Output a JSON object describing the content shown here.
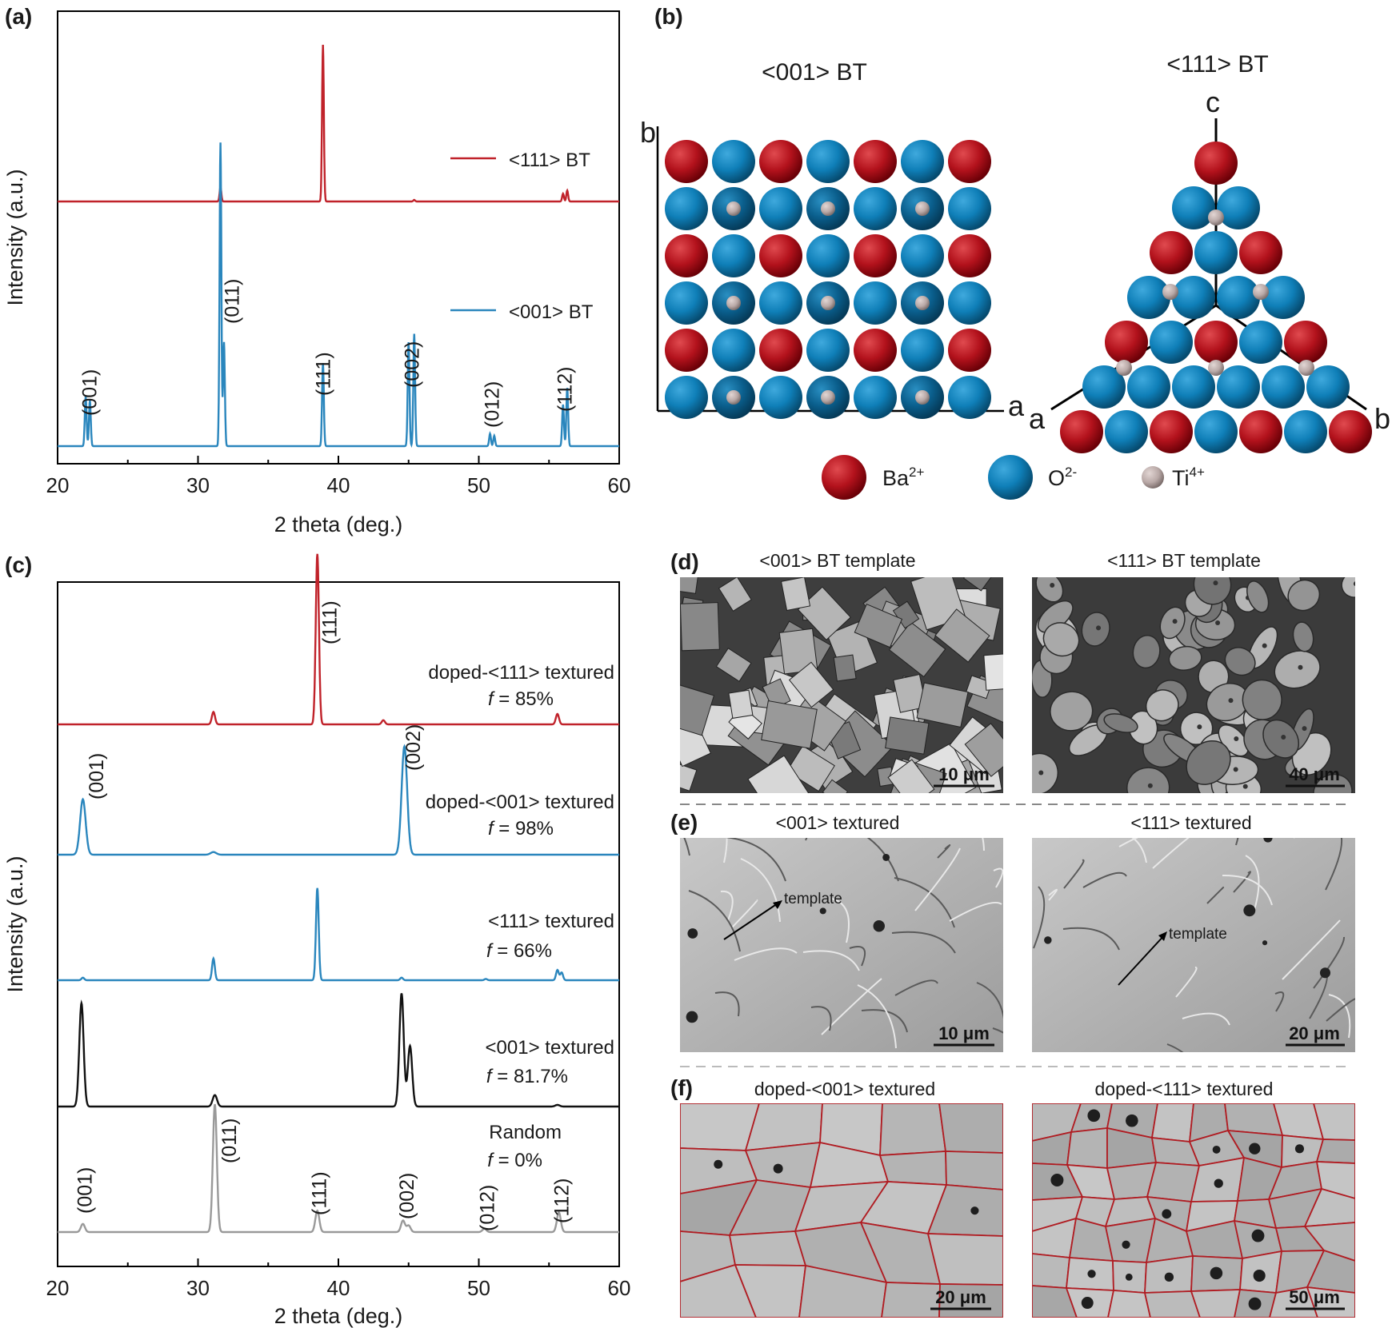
{
  "colors": {
    "red": "#c0222a",
    "blue": "#2a86bd",
    "black": "#111111",
    "gray": "#999999",
    "ba": "#b3121c",
    "o": "#0f7fb8",
    "ti": "#b9a9a7"
  },
  "panel_a": {
    "label": "(a)",
    "legend": [
      "<111> BT",
      "<001> BT"
    ],
    "peaks": [
      "(001)",
      "(011)",
      "(111)",
      "(002)",
      "(012)",
      "(112)"
    ]
  },
  "panel_b": {
    "label": "(b)",
    "title_001": "<001> BT",
    "title_111": "<111> BT",
    "axis_001_b": "b",
    "axis_001_a": "a",
    "axis_111_c": "c",
    "axis_111_a": "a",
    "axis_111_b": "b",
    "legend_ba": "Ba",
    "legend_ba_sup": "2+",
    "legend_o": "O",
    "legend_o_sup": "2-",
    "legend_ti": "Ti",
    "legend_ti_sup": "4+"
  },
  "panel_c": {
    "label": "(c)",
    "series": [
      {
        "name": "doped-<111> textured",
        "f_label": "f",
        "f_value": " = 85%"
      },
      {
        "name": "doped-<001> textured",
        "f_label": "f",
        "f_value": " = 98%"
      },
      {
        "name": "<111> textured",
        "f_label": "f",
        "f_value": " = 66%"
      },
      {
        "name": "<001> textured",
        "f_label": "f",
        "f_value": " = 81.7%"
      },
      {
        "name": "Random",
        "f_label": "f",
        "f_value": " = 0%"
      }
    ],
    "peaks_top": [
      "(111)",
      "(001)",
      "(002)"
    ],
    "peaks_random": [
      "(001)",
      "(011)",
      "(111)",
      "(002)",
      "(012)",
      "(112)"
    ]
  },
  "panel_d": {
    "label": "(d)",
    "left_title": "<001> BT template",
    "right_title": "<111> BT template",
    "left_scale": "10 μm",
    "right_scale": "40 μm"
  },
  "panel_e": {
    "label": "(e)",
    "left_title": "<001> textured",
    "right_title": "<111> textured",
    "left_scale": "10 μm",
    "right_scale": "20 μm",
    "annotation": "template"
  },
  "panel_f": {
    "label": "(f)",
    "left_title": "doped-<001> textured",
    "right_title": "doped-<111> textured",
    "left_scale": "20 μm",
    "right_scale": "50 μm"
  },
  "chart_data": [
    {
      "type": "line",
      "panel": "a",
      "title": "",
      "xlabel": "2 theta (deg.)",
      "ylabel": "Intensity (a.u.)",
      "xlim": [
        20,
        60
      ],
      "xticks": [
        20,
        30,
        40,
        50,
        60
      ],
      "series": [
        {
          "name": "<111> BT",
          "color": "#c0222a",
          "peaks": [
            [
              31.6,
              0.09
            ],
            [
              38.9,
              1.0
            ],
            [
              45.4,
              0.01
            ],
            [
              56.0,
              0.05
            ],
            [
              56.3,
              0.07
            ]
          ]
        },
        {
          "name": "<001> BT",
          "color": "#2a86bd",
          "peaks": [
            [
              22.0,
              0.12
            ],
            [
              22.3,
              0.11
            ],
            [
              31.6,
              0.73
            ],
            [
              31.85,
              0.25
            ],
            [
              38.9,
              0.2
            ],
            [
              45.0,
              0.25
            ],
            [
              45.4,
              0.27
            ],
            [
              50.8,
              0.03
            ],
            [
              51.1,
              0.025
            ],
            [
              56.0,
              0.1
            ],
            [
              56.3,
              0.14
            ]
          ]
        }
      ],
      "annotations": [
        [
          22.2,
          "(001)"
        ],
        [
          31.7,
          "(011)"
        ],
        [
          38.9,
          "(111)"
        ],
        [
          45.2,
          "(002)"
        ],
        [
          50.9,
          "(012)"
        ],
        [
          56.1,
          "(112)"
        ]
      ]
    },
    {
      "type": "line",
      "panel": "c",
      "title": "",
      "xlabel": "2 theta (deg.)",
      "ylabel": "Intensity (a.u.)",
      "xlim": [
        20,
        60
      ],
      "xticks": [
        20,
        30,
        40,
        50,
        60
      ],
      "series": [
        {
          "name": "doped-<111> textured",
          "f": "85%",
          "color": "#c0222a",
          "peaks": [
            [
              31.1,
              0.06
            ],
            [
              38.5,
              0.82
            ],
            [
              43.2,
              0.02
            ],
            [
              55.6,
              0.05
            ]
          ]
        },
        {
          "name": "doped-<001> textured",
          "f": "98%",
          "color": "#2a86bd",
          "peaks": [
            [
              21.8,
              0.42
            ],
            [
              31.1,
              0.02
            ],
            [
              44.7,
              0.82
            ]
          ]
        },
        {
          "name": "<111> textured",
          "f": "66%",
          "color": "#2a86bd",
          "peaks": [
            [
              21.8,
              0.02
            ],
            [
              31.1,
              0.17
            ],
            [
              38.5,
              0.72
            ],
            [
              44.5,
              0.02
            ],
            [
              50.5,
              0.01
            ],
            [
              55.6,
              0.08
            ],
            [
              55.9,
              0.06
            ]
          ]
        },
        {
          "name": "<001> textured",
          "f": "81.7%",
          "color": "#111111",
          "peaks": [
            [
              21.7,
              0.63
            ],
            [
              31.2,
              0.07
            ],
            [
              44.5,
              0.69
            ],
            [
              45.1,
              0.37
            ],
            [
              55.6,
              0.01
            ]
          ]
        },
        {
          "name": "Random",
          "f": "0%",
          "color": "#999999",
          "peaks": [
            [
              21.8,
              0.05
            ],
            [
              31.2,
              0.78
            ],
            [
              38.5,
              0.13
            ],
            [
              44.6,
              0.07
            ],
            [
              45.0,
              0.04
            ],
            [
              50.4,
              0.02
            ],
            [
              55.7,
              0.12
            ]
          ]
        }
      ],
      "annotations": [
        [
          38.6,
          "(111)"
        ],
        [
          22.0,
          "(001)"
        ],
        [
          44.9,
          "(002)"
        ],
        [
          21.9,
          "(001)"
        ],
        [
          31.4,
          "(011)"
        ],
        [
          38.6,
          "(111)"
        ],
        [
          44.8,
          "(002)"
        ],
        [
          50.5,
          "(012)"
        ],
        [
          55.8,
          "(112)"
        ]
      ]
    }
  ]
}
